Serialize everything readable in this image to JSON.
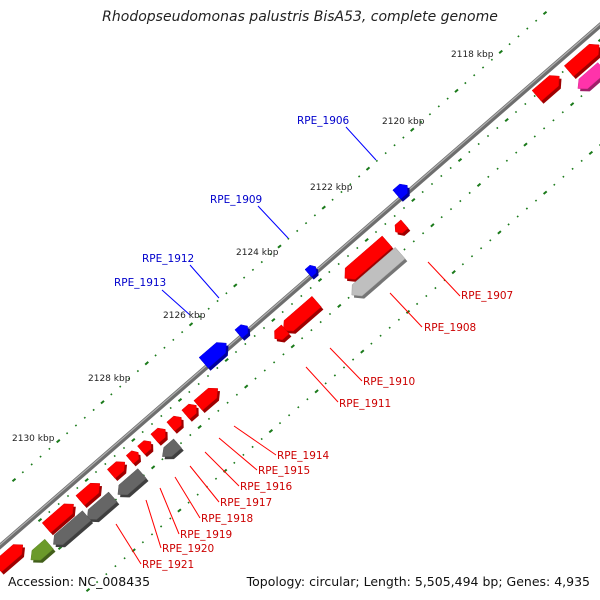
{
  "title": "Rhodopseudomonas palustris BisA53, complete genome",
  "accession": "Accession: NC_008435",
  "summary": "Topology: circular; Length: 5,505,494 bp; Genes: 4,935",
  "colors": {
    "backbone": "#808080",
    "tick": "#1a7a1a",
    "forward_gene": "#ff0000",
    "reverse_gene": "#ff0000",
    "highlight_gene": "#0000ff",
    "grey_gene": "#bfbfbf",
    "dark_gene": "#666666",
    "olive_gene": "#6b9a2a",
    "pink_gene": "#ff33aa"
  },
  "scale_labels": [
    "2118 kbp",
    "2120 kbp",
    "2122 kbp",
    "2124 kbp",
    "2126 kbp",
    "2128 kbp",
    "2130 kbp"
  ],
  "gene_labels": {
    "blue": [
      "RPE_1906",
      "RPE_1909",
      "RPE_1912",
      "RPE_1913"
    ],
    "red": [
      "RPE_1907",
      "RPE_1908",
      "RPE_1910",
      "RPE_1911",
      "RPE_1914",
      "RPE_1915",
      "RPE_1916",
      "RPE_1917",
      "RPE_1918",
      "RPE_1919",
      "RPE_1920",
      "RPE_1921"
    ]
  }
}
